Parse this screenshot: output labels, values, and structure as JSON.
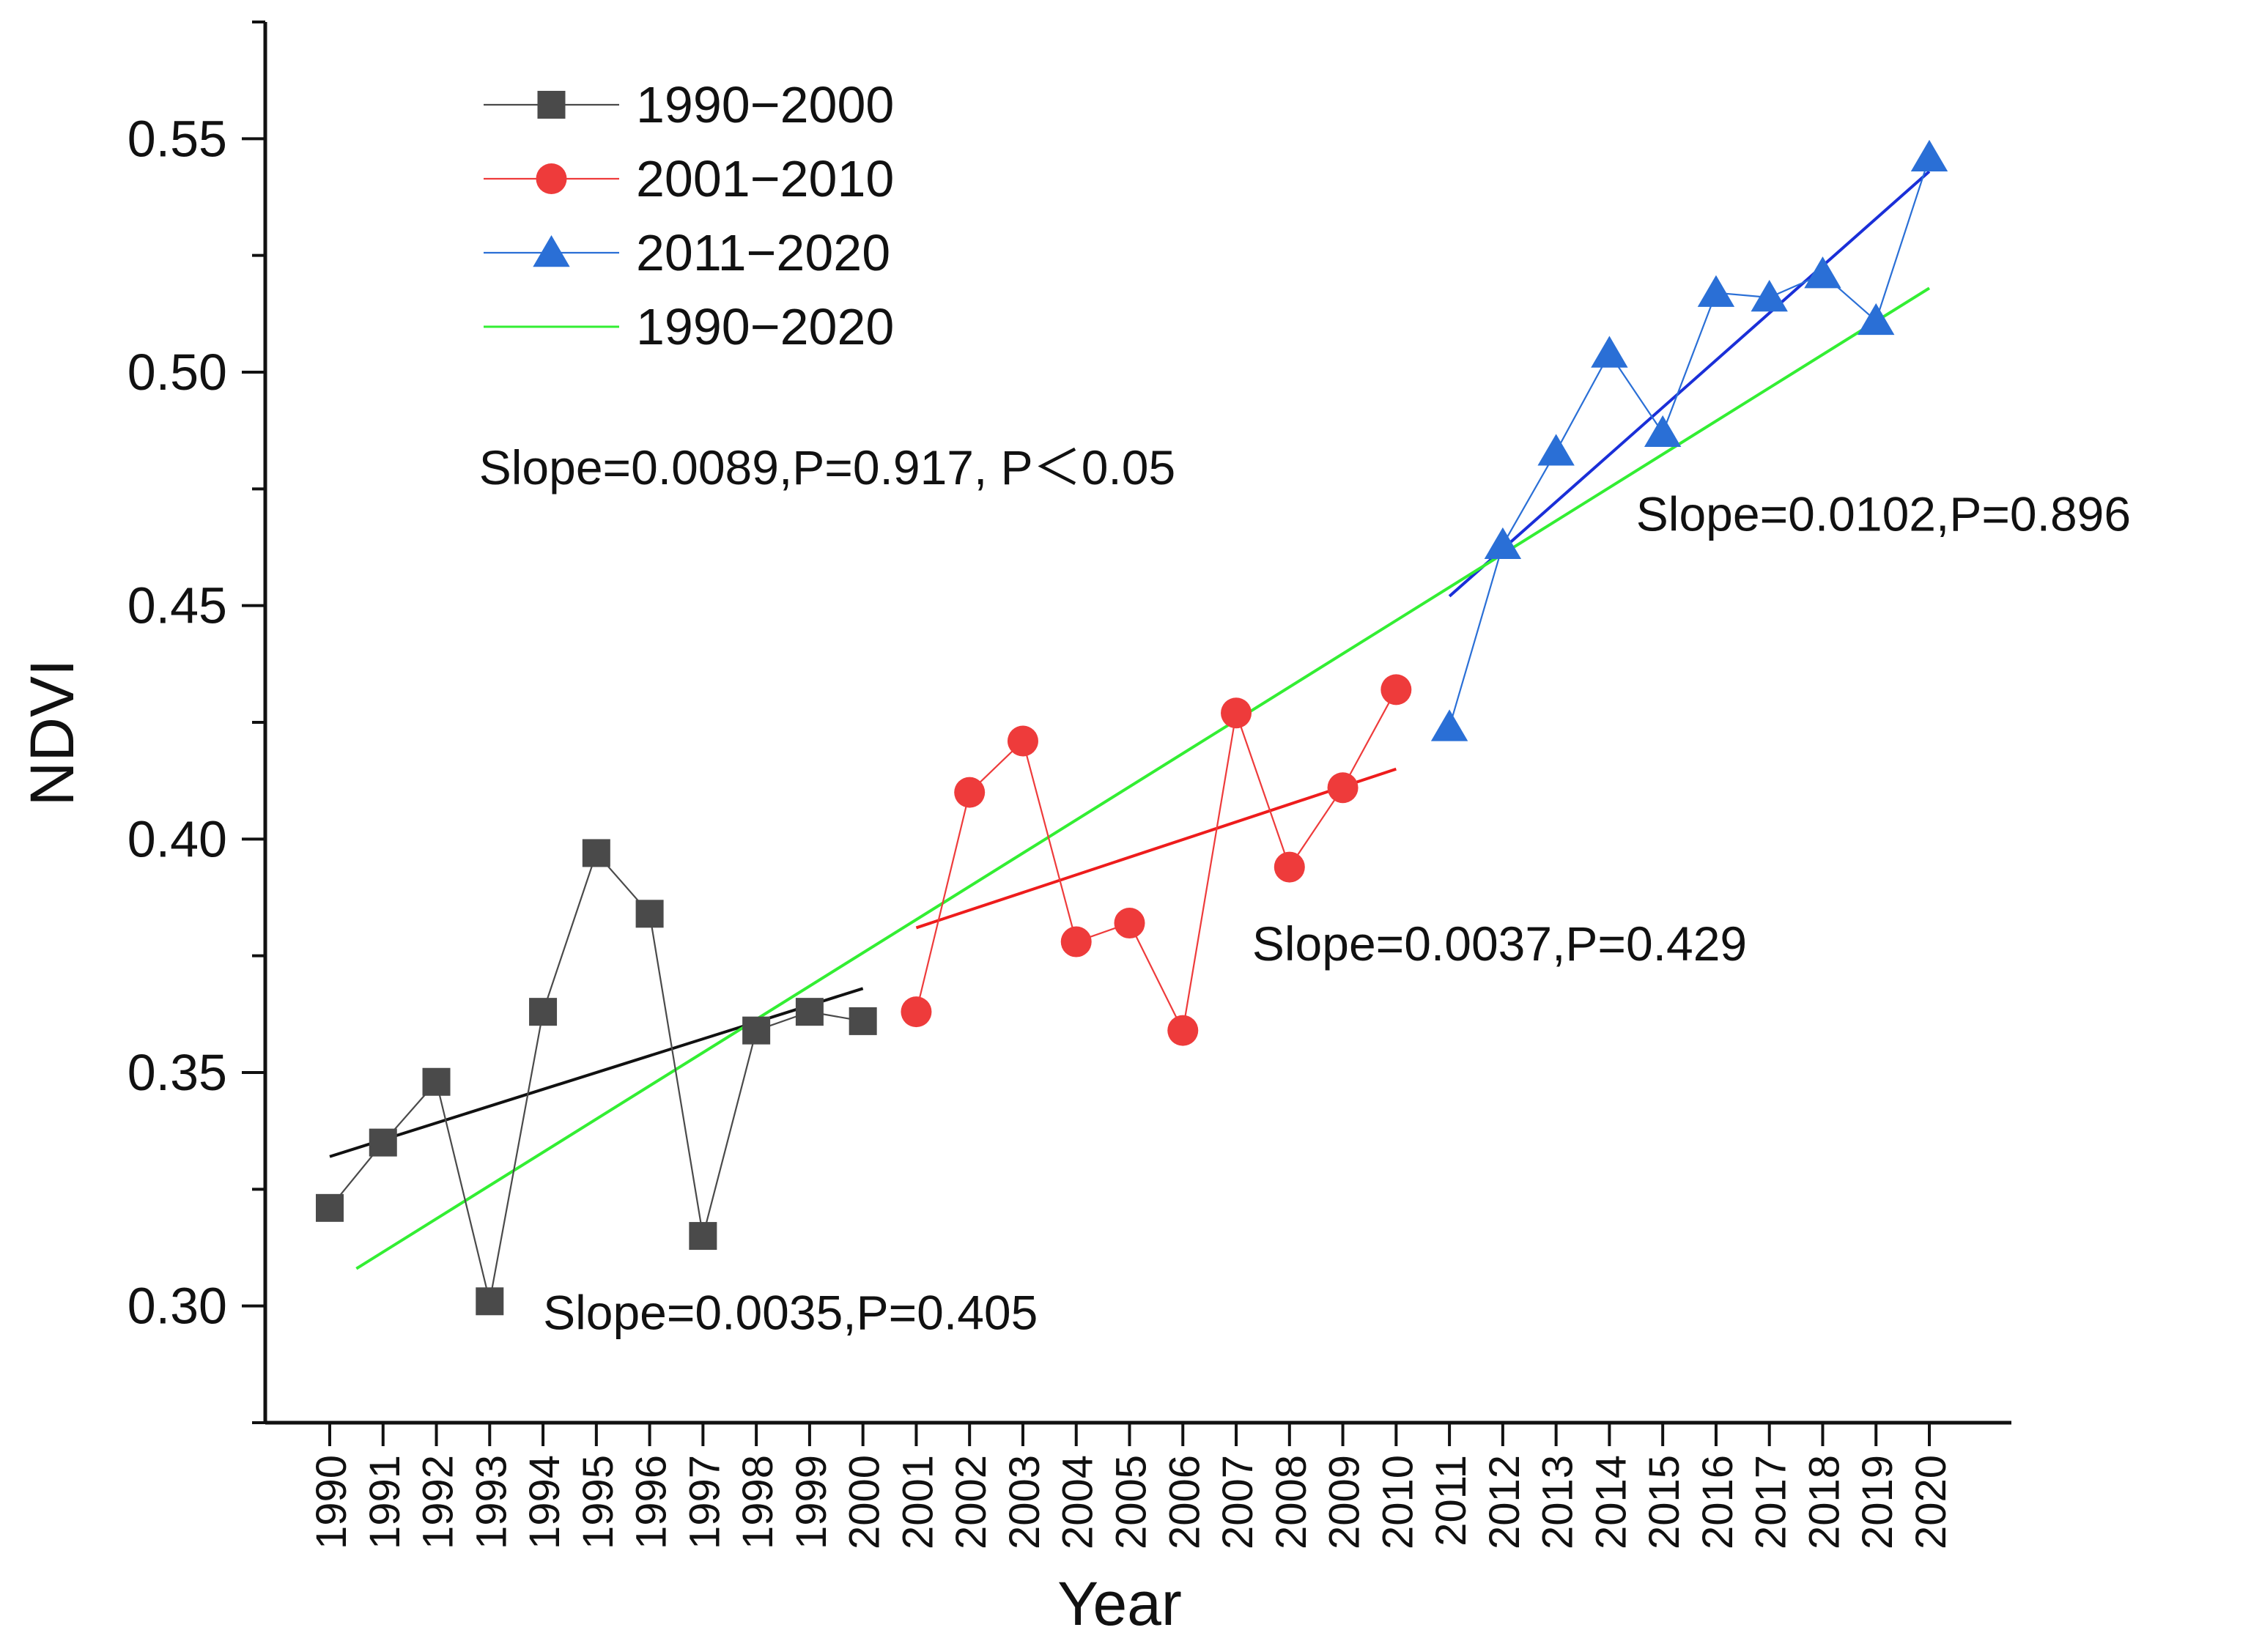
{
  "chart_data": {
    "type": "line",
    "xlabel": "Year",
    "ylabel": "NDVI",
    "ylim": [
      0.275,
      0.575
    ],
    "yticks": [
      0.3,
      0.35,
      0.4,
      0.45,
      0.5,
      0.55
    ],
    "ytick_labels": [
      "0.30",
      "0.35",
      "0.40",
      "0.45",
      "0.50",
      "0.55"
    ],
    "x": [
      1990,
      1991,
      1992,
      1993,
      1994,
      1995,
      1996,
      1997,
      1998,
      1999,
      2000,
      2001,
      2002,
      2003,
      2004,
      2005,
      2006,
      2007,
      2008,
      2009,
      2010,
      2011,
      2012,
      2013,
      2014,
      2015,
      2016,
      2017,
      2018,
      2019,
      2020
    ],
    "xtick_labels": [
      "1990",
      "1991",
      "1992",
      "1993",
      "1994",
      "1995",
      "1996",
      "1997",
      "1998",
      "1999",
      "2000",
      "2001",
      "2002",
      "2003",
      "2004",
      "2005",
      "2006",
      "2007",
      "2008",
      "2009",
      "2010",
      "2011",
      "2012",
      "2013",
      "2014",
      "2015",
      "2016",
      "2017",
      "2018",
      "2019",
      "2020"
    ],
    "series": [
      {
        "name": "1990−2000",
        "color": "#4a4a4a",
        "marker": "square",
        "x": [
          1990,
          1991,
          1992,
          1993,
          1994,
          1995,
          1996,
          1997,
          1998,
          1999,
          2000
        ],
        "values": [
          0.321,
          0.335,
          0.348,
          0.301,
          0.363,
          0.397,
          0.384,
          0.315,
          0.359,
          0.363,
          0.361
        ]
      },
      {
        "name": "2001−2010",
        "color": "#ee3b3b",
        "marker": "circle",
        "x": [
          2001,
          2002,
          2003,
          2004,
          2005,
          2006,
          2007,
          2008,
          2009,
          2010
        ],
        "values": [
          0.363,
          0.41,
          0.421,
          0.378,
          0.382,
          0.359,
          0.427,
          0.394,
          0.411,
          0.432
        ]
      },
      {
        "name": "2011−2020",
        "color": "#2a6fd6",
        "marker": "triangle",
        "x": [
          2011,
          2012,
          2013,
          2014,
          2015,
          2016,
          2017,
          2018,
          2019,
          2020
        ],
        "values": [
          0.424,
          0.463,
          0.483,
          0.504,
          0.487,
          0.517,
          0.516,
          0.521,
          0.511,
          0.546
        ]
      }
    ],
    "trend_lines": [
      {
        "name": "1990−2000 fit",
        "color": "#111111",
        "x": [
          1990,
          2000
        ],
        "y": [
          0.332,
          0.368
        ]
      },
      {
        "name": "2001−2010 fit",
        "color": "#ee1c1c",
        "x": [
          2001,
          2010
        ],
        "y": [
          0.381,
          0.415
        ]
      },
      {
        "name": "2011−2020 fit",
        "color": "#1a2fd8",
        "x": [
          2011,
          2020
        ],
        "y": [
          0.452,
          0.543
        ]
      },
      {
        "name": "1990−2020",
        "color": "#33ee33",
        "x": [
          1990.5,
          2020
        ],
        "y": [
          0.308,
          0.518
        ]
      }
    ],
    "legend": {
      "placement": "top-left",
      "entries": [
        "1990−2000",
        "2001−2010",
        "2011−2020",
        "1990−2020"
      ]
    },
    "annotations": [
      {
        "text": "Slope=0.0089,P=0.917, P＜0.05",
        "x": 1992.8,
        "y": 0.476
      },
      {
        "text": "Slope=0.0102,P=0.896",
        "x": 2014.5,
        "y": 0.466
      },
      {
        "text": "Slope=0.0037,P=0.429",
        "x": 2007.3,
        "y": 0.374
      },
      {
        "text": "Slope=0.0035,P=0.405",
        "x": 1994.0,
        "y": 0.295
      }
    ]
  }
}
